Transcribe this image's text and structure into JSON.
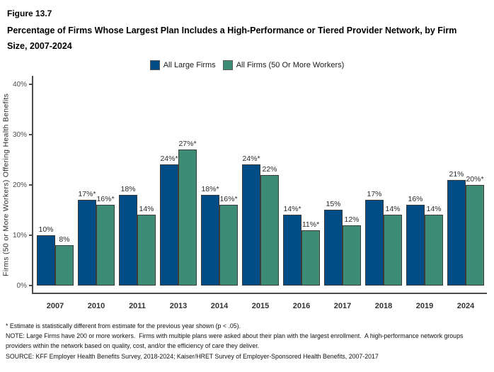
{
  "figure": {
    "number": "Figure 13.7",
    "title": "Percentage of Firms Whose Largest Plan Includes a High-Performance or Tiered Provider Network, by Firm Size, 2007-2024"
  },
  "legend": {
    "items": [
      {
        "label": "All Large Firms",
        "color": "#004C87"
      },
      {
        "label": "All Firms (50 Or More Workers)",
        "color": "#3D8C76"
      }
    ]
  },
  "chart_data": {
    "type": "bar",
    "title": "Percentage of Firms Whose Largest Plan Includes a High-Performance or Tiered Provider Network, by Firm Size, 2007-2024",
    "categories": [
      "2007",
      "2010",
      "2011",
      "2013",
      "2014",
      "2015",
      "2016",
      "2017",
      "2018",
      "2019",
      "2024"
    ],
    "series": [
      {
        "name": "All Large Firms",
        "color": "#004C87",
        "values": [
          10,
          17,
          18,
          24,
          18,
          24,
          14,
          15,
          17,
          16,
          21
        ],
        "labels": [
          "10%",
          "17%*",
          "18%",
          "24%*",
          "18%*",
          "24%*",
          "14%*",
          "15%",
          "17%",
          "16%",
          "21%"
        ]
      },
      {
        "name": "All Firms (50 Or More Workers)",
        "color": "#3D8C76",
        "values": [
          8,
          16,
          14,
          27,
          16,
          22,
          11,
          12,
          14,
          14,
          20
        ],
        "labels": [
          "8%",
          "16%*",
          "14%",
          "27%*",
          "16%*",
          "22%",
          "11%*",
          "12%",
          "14%",
          "14%",
          "20%*"
        ]
      }
    ],
    "xlabel": "",
    "ylabel": "Firms (50 or More Workers) Offering Health Benefits",
    "yticks": [
      "0%",
      "10%",
      "20%",
      "30%",
      "40%"
    ],
    "ytick_values": [
      0,
      10,
      20,
      30,
      40
    ],
    "ylim": [
      0,
      42
    ],
    "grid": false,
    "legend_position": "top"
  },
  "footnotes": {
    "asterisk": "* Estimate is statistically different from estimate for the previous year shown (p < .05).",
    "note": "NOTE: Large Firms have 200 or more workers.  Firms with multiple plans were asked about their plan with the largest enrollment.  A high-performance network groups providers within the network based on quality, cost, and/or the efficiency of care they deliver.",
    "source": "SOURCE: KFF Employer Health Benefits Survey, 2018-2024; Kaiser/HRET Survey of Employer-Sponsored Health Benefits, 2007-2017"
  }
}
